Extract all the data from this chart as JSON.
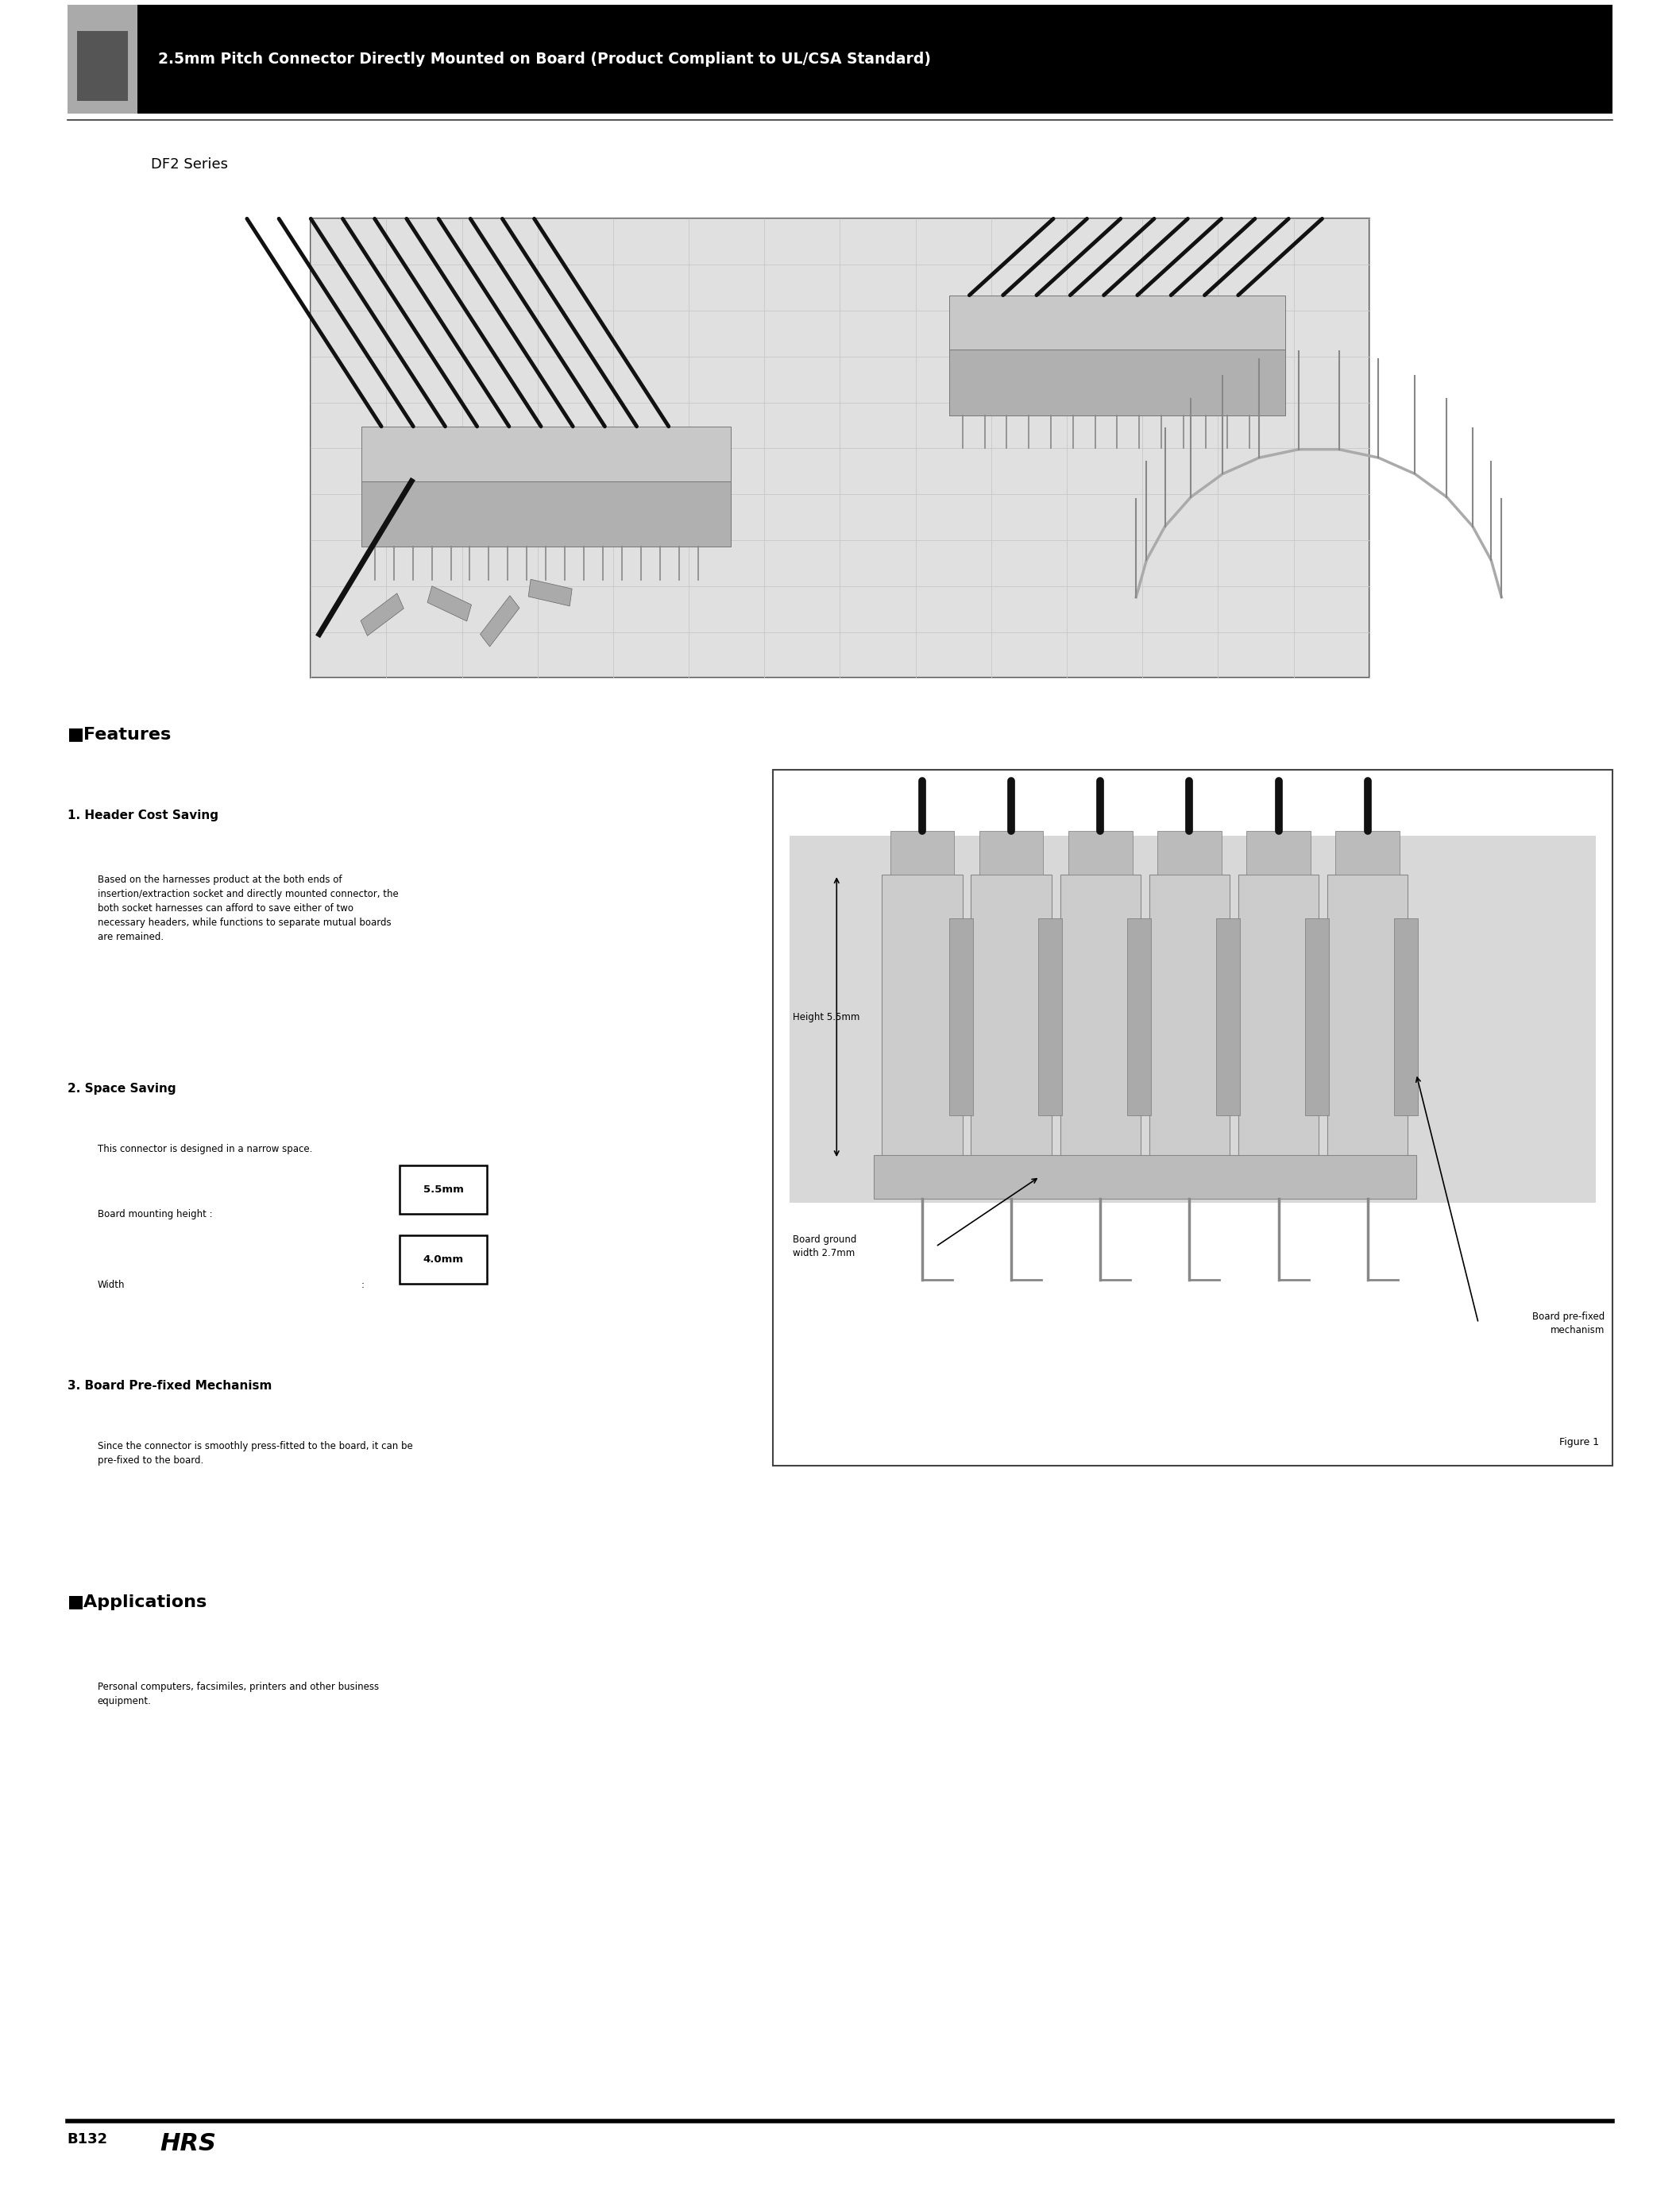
{
  "page_width": 21.15,
  "page_height": 27.53,
  "bg_color": "#ffffff",
  "title_text": "2.5mm Pitch Connector Directly Mounted on Board (Product Compliant to UL/CSA Standard)",
  "series_text": "DF2 Series",
  "features_title": "■Features",
  "section1_title": "1. Header Cost Saving",
  "section1_text": "Based on the harnesses product at the both ends of\ninsertion/extraction socket and directly mounted connector, the\nboth socket harnesses can afford to save either of two\nnecessary headers, while functions to separate mutual boards\nare remained.",
  "section2_title": "2. Space Saving",
  "section2_text1": "This connector is designed in a narrow space.",
  "section2_label1": "Board mounting height :",
  "section2_val1": "5.5mm",
  "section2_label2": "Width",
  "section2_colon2": ":",
  "section2_val2": "4.0mm",
  "section3_title": "3. Board Pre-fixed Mechanism",
  "section3_text": "Since the connector is smoothly press-fitted to the board, it can be\npre-fixed to the board.",
  "applications_title": "■Applications",
  "applications_text": "Personal computers, facsimiles, printers and other business\nequipment.",
  "fig_label1": "Height 5.5mm",
  "fig_label2": "Board ground\nwidth 2.7mm",
  "fig_label3": "Board pre-fixed\nmechanism",
  "fig_caption": "Figure 1",
  "footer_page": "B132",
  "footer_logo": "HRS"
}
